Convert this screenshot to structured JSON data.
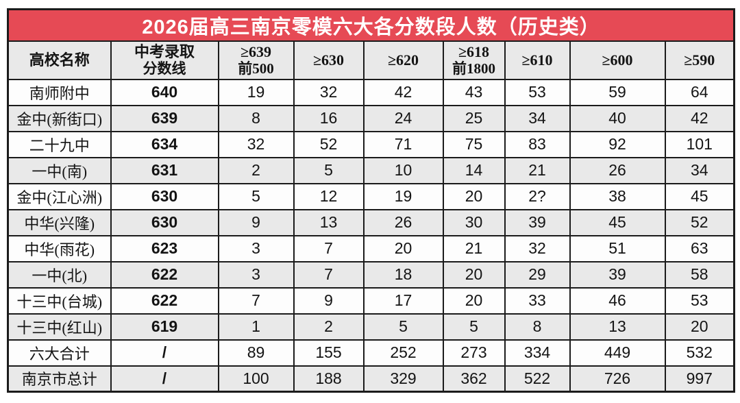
{
  "title": "2026届高三南京零模六大各分数段人数（历史类）",
  "colors": {
    "title_bg": "#e64a55",
    "title_text": "#ffffff",
    "header_bg": "#e9e9e9",
    "row_bg": "#fdfdfd",
    "row_alt_bg": "#e9e9e9",
    "border_color": "#1b1b1b",
    "text_color": "#141414"
  },
  "chart_data": {
    "type": "table",
    "title": "2026届高三南京零模六大各分数段人数（历史类）",
    "columns": [
      {
        "line1": "高校名称",
        "line2": ""
      },
      {
        "line1": "中考录取",
        "line2": "分数线"
      },
      {
        "line1": "≥639",
        "line2": "前500"
      },
      {
        "line1": "≥630",
        "line2": ""
      },
      {
        "line1": "≥620",
        "line2": ""
      },
      {
        "line1": "≥618",
        "line2": "前1800"
      },
      {
        "line1": "≥610",
        "line2": ""
      },
      {
        "line1": "≥600",
        "line2": ""
      },
      {
        "line1": "≥590",
        "line2": ""
      }
    ],
    "rows": [
      {
        "school": "南师附中",
        "cells": [
          "640",
          "19",
          "32",
          "42",
          "43",
          "53",
          "59",
          "64"
        ]
      },
      {
        "school": "金中(新街口)",
        "cells": [
          "639",
          "8",
          "16",
          "24",
          "25",
          "34",
          "40",
          "42"
        ]
      },
      {
        "school": "二十九中",
        "cells": [
          "634",
          "32",
          "52",
          "71",
          "75",
          "83",
          "92",
          "101"
        ]
      },
      {
        "school": "一中(南)",
        "cells": [
          "631",
          "2",
          "5",
          "10",
          "14",
          "21",
          "26",
          "34"
        ]
      },
      {
        "school": "金中(江心洲)",
        "cells": [
          "630",
          "5",
          "12",
          "19",
          "20",
          "2?",
          "38",
          "45"
        ]
      },
      {
        "school": "中华(兴隆)",
        "cells": [
          "630",
          "9",
          "13",
          "26",
          "30",
          "39",
          "45",
          "52"
        ]
      },
      {
        "school": "中华(雨花)",
        "cells": [
          "623",
          "3",
          "7",
          "20",
          "21",
          "32",
          "51",
          "63"
        ]
      },
      {
        "school": "一中(北)",
        "cells": [
          "622",
          "3",
          "7",
          "18",
          "20",
          "29",
          "39",
          "58"
        ]
      },
      {
        "school": "十三中(台城)",
        "cells": [
          "622",
          "7",
          "9",
          "17",
          "20",
          "33",
          "46",
          "53"
        ]
      },
      {
        "school": "十三中(红山)",
        "cells": [
          "619",
          "1",
          "2",
          "5",
          "5",
          "8",
          "13",
          "20"
        ]
      },
      {
        "school": "六大合计",
        "cells": [
          "/",
          "89",
          "155",
          "252",
          "273",
          "334",
          "449",
          "532"
        ]
      },
      {
        "school": "南京市总计",
        "cells": [
          "/",
          "100",
          "188",
          "329",
          "362",
          "522",
          "726",
          "997"
        ]
      }
    ]
  }
}
